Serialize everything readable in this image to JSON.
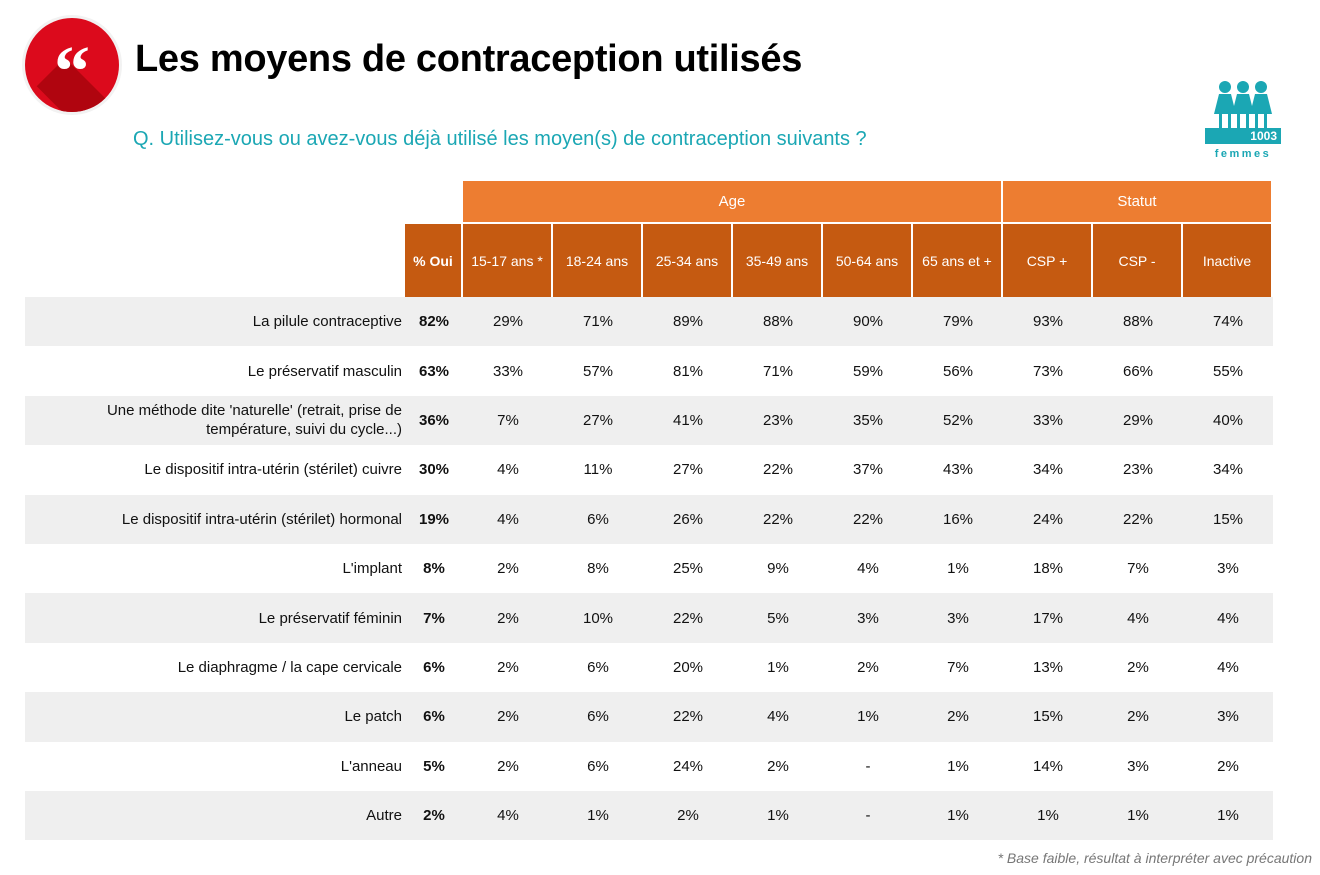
{
  "title": "Les moyens de contraception utilisés",
  "question": "Q. Utilisez-vous ou avez-vous déjà utilisé les moyen(s) de contraception suivants ?",
  "sample": {
    "count": "1003",
    "label": "femmes"
  },
  "colors": {
    "accent_red": "#dc0a1c",
    "teal": "#1ba7b4",
    "header_light": "#ed7d31",
    "header_dark": "#c55a11",
    "row_alt": "#efefef"
  },
  "table": {
    "groups": [
      {
        "label": "Age"
      },
      {
        "label": "Statut"
      }
    ],
    "columns": [
      "% Oui",
      "15-17 ans *",
      "18-24 ans",
      "25-34 ans",
      "35-49 ans",
      "50-64 ans",
      "65 ans et +",
      "CSP +",
      "CSP -",
      "Inactive"
    ],
    "rows": [
      {
        "label": "La pilule contraceptive",
        "values": [
          "82%",
          "29%",
          "71%",
          "89%",
          "88%",
          "90%",
          "79%",
          "93%",
          "88%",
          "74%"
        ]
      },
      {
        "label": "Le préservatif masculin",
        "values": [
          "63%",
          "33%",
          "57%",
          "81%",
          "71%",
          "59%",
          "56%",
          "73%",
          "66%",
          "55%"
        ]
      },
      {
        "label": "Une méthode dite 'naturelle' (retrait, prise de température, suivi du cycle...)",
        "values": [
          "36%",
          "7%",
          "27%",
          "41%",
          "23%",
          "35%",
          "52%",
          "33%",
          "29%",
          "40%"
        ]
      },
      {
        "label": "Le dispositif intra-utérin (stérilet) cuivre",
        "values": [
          "30%",
          "4%",
          "11%",
          "27%",
          "22%",
          "37%",
          "43%",
          "34%",
          "23%",
          "34%"
        ]
      },
      {
        "label": "Le dispositif intra-utérin (stérilet) hormonal",
        "values": [
          "19%",
          "4%",
          "6%",
          "26%",
          "22%",
          "22%",
          "16%",
          "24%",
          "22%",
          "15%"
        ]
      },
      {
        "label": "L'implant",
        "values": [
          "8%",
          "2%",
          "8%",
          "25%",
          "9%",
          "4%",
          "1%",
          "18%",
          "7%",
          "3%"
        ]
      },
      {
        "label": "Le préservatif féminin",
        "values": [
          "7%",
          "2%",
          "10%",
          "22%",
          "5%",
          "3%",
          "3%",
          "17%",
          "4%",
          "4%"
        ]
      },
      {
        "label": "Le diaphragme / la cape cervicale",
        "values": [
          "6%",
          "2%",
          "6%",
          "20%",
          "1%",
          "2%",
          "7%",
          "13%",
          "2%",
          "4%"
        ]
      },
      {
        "label": "Le patch",
        "values": [
          "6%",
          "2%",
          "6%",
          "22%",
          "4%",
          "1%",
          "2%",
          "15%",
          "2%",
          "3%"
        ]
      },
      {
        "label": "L'anneau",
        "values": [
          "5%",
          "2%",
          "6%",
          "24%",
          "2%",
          "-",
          "1%",
          "14%",
          "3%",
          "2%"
        ]
      },
      {
        "label": "Autre",
        "values": [
          "2%",
          "4%",
          "1%",
          "2%",
          "1%",
          "-",
          "1%",
          "1%",
          "1%",
          "1%"
        ]
      }
    ]
  },
  "footnote": "* Base faible, résultat à interpréter avec précaution"
}
